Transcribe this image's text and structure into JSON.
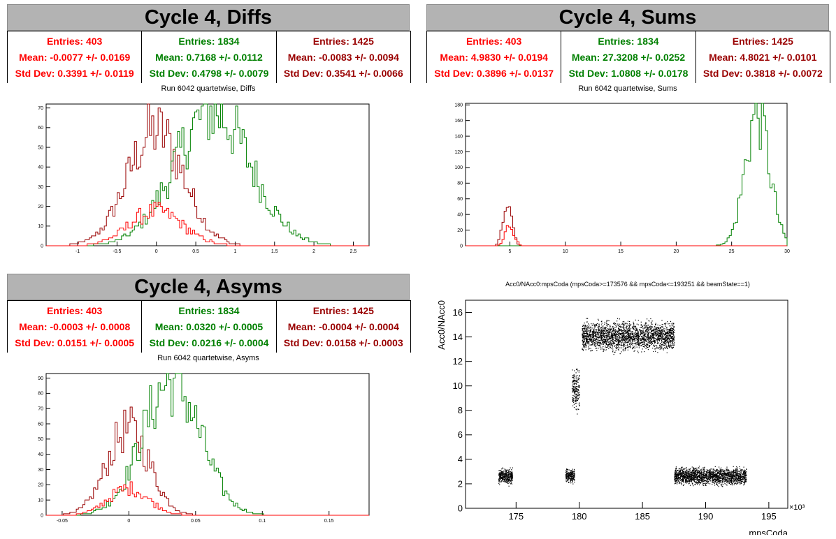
{
  "colors": {
    "red": "#ff0000",
    "green": "#008000",
    "darkred": "#990000",
    "banner": "#b3b3b3"
  },
  "panels": {
    "diffs": {
      "banner": "Cycle 4, Diffs",
      "subtitle": "Run 6042 quartetwise, Diffs",
      "stats": [
        {
          "entries": "Entries: 403",
          "mean": "Mean: -0.0077 +/- 0.0169",
          "std": "Std Dev: 0.3391 +/- 0.0119",
          "color": "#ff0000"
        },
        {
          "entries": "Entries: 1834",
          "mean": "Mean: 0.7168 +/- 0.0112",
          "std": "Std Dev: 0.4798 +/- 0.0079",
          "color": "#008000"
        },
        {
          "entries": "Entries: 1425",
          "mean": "Mean: -0.0083 +/- 0.0094",
          "std": "Std Dev: 0.3541 +/- 0.0066",
          "color": "#990000"
        }
      ]
    },
    "sums": {
      "banner": "Cycle 4, Sums",
      "subtitle": "Run 6042 quartetwise, Sums",
      "stats": [
        {
          "entries": "Entries: 403",
          "mean": "Mean: 4.9830 +/- 0.0194",
          "std": "Std Dev: 0.3896 +/- 0.0137",
          "color": "#ff0000"
        },
        {
          "entries": "Entries: 1834",
          "mean": "Mean: 27.3208 +/- 0.0252",
          "std": "Std Dev: 1.0808 +/- 0.0178",
          "color": "#008000"
        },
        {
          "entries": "Entries: 1425",
          "mean": "Mean: 4.8021 +/- 0.0101",
          "std": "Std Dev: 0.3818 +/- 0.0072",
          "color": "#990000"
        }
      ]
    },
    "asyms": {
      "banner": "Cycle 4, Asyms",
      "subtitle": "Run 6042 quartetwise, Asyms",
      "stats": [
        {
          "entries": "Entries: 403",
          "mean": "Mean: -0.0003 +/- 0.0008",
          "std": "Std Dev: 0.0151 +/- 0.0005",
          "color": "#ff0000"
        },
        {
          "entries": "Entries: 1834",
          "mean": "Mean: 0.0320 +/- 0.0005",
          "std": "Std Dev: 0.0216 +/- 0.0004",
          "color": "#008000"
        },
        {
          "entries": "Entries: 1425",
          "mean": "Mean: -0.0004 +/- 0.0004",
          "std": "Std Dev: 0.0158 +/- 0.0003",
          "color": "#990000"
        }
      ]
    },
    "scatter": {
      "title": "Acc0/NAcc0:mpsCoda (mpsCoda>=173576 && mpsCoda<=193251 && beamState==1)"
    }
  },
  "chart_data": [
    {
      "type": "histogram",
      "xlim": [
        -1.4,
        2.7
      ],
      "ylim": [
        0,
        72
      ],
      "xticks": [
        -1,
        -0.5,
        0,
        0.5,
        1,
        1.5,
        2,
        2.5
      ],
      "xtick_labels": [
        "-1",
        "-0.5",
        "0",
        "0.5",
        "1",
        "1.5",
        "2",
        "2.5"
      ],
      "yticks": [
        0,
        10,
        20,
        30,
        40,
        50,
        60,
        70
      ],
      "ytick_labels": [
        "0",
        "10",
        "20",
        "30",
        "40",
        "50",
        "60",
        "70"
      ],
      "series": [
        {
          "color": "#990000",
          "mean": -0.0083,
          "std": 0.3541,
          "peak": 60
        },
        {
          "color": "#008000",
          "mean": 0.7168,
          "std": 0.4798,
          "peak": 70
        },
        {
          "color": "#ff0000",
          "mean": -0.0077,
          "std": 0.3391,
          "peak": 18
        }
      ]
    },
    {
      "type": "histogram",
      "xlim": [
        1,
        30
      ],
      "ylim": [
        0,
        182
      ],
      "xticks": [
        5,
        10,
        15,
        20,
        25,
        30
      ],
      "xtick_labels": [
        "5",
        "10",
        "15",
        "20",
        "25",
        "30"
      ],
      "yticks": [
        0,
        20,
        40,
        60,
        80,
        100,
        120,
        140,
        160,
        180
      ],
      "ytick_labels": [
        "0",
        "20",
        "40",
        "60",
        "80",
        "100",
        "120",
        "140",
        "160",
        "180"
      ],
      "series": [
        {
          "color": "#990000",
          "mean": 4.8021,
          "std": 0.3818,
          "peak": 66
        },
        {
          "color": "#008000",
          "mean": 27.3208,
          "std": 1.0808,
          "peak": 175
        },
        {
          "color": "#ff0000",
          "mean": 4.983,
          "std": 0.3896,
          "peak": 28
        }
      ]
    },
    {
      "type": "histogram",
      "xlim": [
        -0.062,
        0.18
      ],
      "ylim": [
        0,
        93
      ],
      "xticks": [
        -0.05,
        0,
        0.05,
        0.1,
        0.15
      ],
      "xtick_labels": [
        "-0.05",
        "0",
        "0.05",
        "0.1",
        "0.15"
      ],
      "yticks": [
        0,
        10,
        20,
        30,
        40,
        50,
        60,
        70,
        80,
        90
      ],
      "ytick_labels": [
        "0",
        "10",
        "20",
        "30",
        "40",
        "50",
        "60",
        "70",
        "80",
        "90"
      ],
      "series": [
        {
          "color": "#990000",
          "mean": -0.0004,
          "std": 0.0158,
          "peak": 58
        },
        {
          "color": "#008000",
          "mean": 0.032,
          "std": 0.0216,
          "peak": 90
        },
        {
          "color": "#ff0000",
          "mean": -0.0003,
          "std": 0.0151,
          "peak": 18
        }
      ]
    },
    {
      "type": "scatter",
      "xlabel": "mpsCoda",
      "ylabel": "Acc0/NAcc0",
      "xexp": "×10³",
      "xlim": [
        171,
        196.5
      ],
      "ylim": [
        0,
        17
      ],
      "xticks": [
        175,
        180,
        185,
        190,
        195
      ],
      "xtick_labels": [
        "175",
        "180",
        "185",
        "190",
        "195"
      ],
      "yticks": [
        0,
        2,
        4,
        6,
        8,
        10,
        12,
        14,
        16
      ],
      "ytick_labels": [
        "0",
        "2",
        "4",
        "6",
        "8",
        "10",
        "12",
        "14",
        "16"
      ],
      "clusters": [
        {
          "x": [
            173.6,
            174.7
          ],
          "y": [
            1.8,
            3.5
          ]
        },
        {
          "x": [
            178.9,
            179.6
          ],
          "y": [
            1.9,
            3.4
          ]
        },
        {
          "x": [
            179.4,
            180.0
          ],
          "y": [
            7.5,
            12.0
          ]
        },
        {
          "x": [
            180.2,
            187.5
          ],
          "y": [
            12.5,
            15.7
          ]
        },
        {
          "x": [
            187.5,
            193.2
          ],
          "y": [
            1.7,
            3.6
          ]
        }
      ]
    }
  ]
}
